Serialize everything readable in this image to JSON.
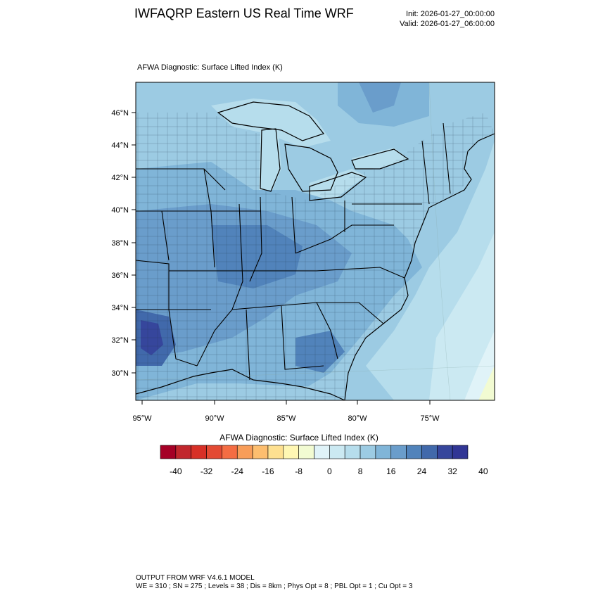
{
  "header": {
    "title": "IWFAQRP Eastern US Real Time WRF",
    "init": "Init: 2026-01-27_00:00:00",
    "valid": "Valid: 2026-01-27_06:00:00"
  },
  "plot": {
    "subtitle": "AFWA Diagnostic: Surface Lifted Index   (K)",
    "lat_labels": [
      "46°N",
      "44°N",
      "42°N",
      "40°N",
      "38°N",
      "36°N",
      "34°N",
      "32°N",
      "30°N"
    ],
    "lon_labels": [
      "95°W",
      "90°W",
      "85°W",
      "80°W",
      "75°W"
    ]
  },
  "colorbar": {
    "title": "AFWA Diagnostic: Surface Lifted Index  (K)",
    "tick_labels": [
      "-40",
      "-32",
      "-24",
      "-16",
      "-8",
      "0",
      "8",
      "16",
      "24",
      "32",
      "40"
    ],
    "colors": [
      "#a50026",
      "#c1272d",
      "#d73027",
      "#e34a33",
      "#f46d43",
      "#f89d59",
      "#fdbe6f",
      "#fee090",
      "#fff7b3",
      "#f2fbd2",
      "#e0f3f8",
      "#cbe9f2",
      "#b6ddec",
      "#9ccbe3",
      "#80b5d8",
      "#6a9dcb",
      "#5183bb",
      "#4169ab",
      "#36469c",
      "#313695"
    ]
  },
  "footer": {
    "line1": "OUTPUT FROM WRF V4.6.1 MODEL",
    "line2": "WE = 310 ; SN = 275 ; Levels = 38 ; Dis = 8km ; Phys Opt = 8 ; PBL Opt = 1 ; Cu Opt = 3"
  }
}
